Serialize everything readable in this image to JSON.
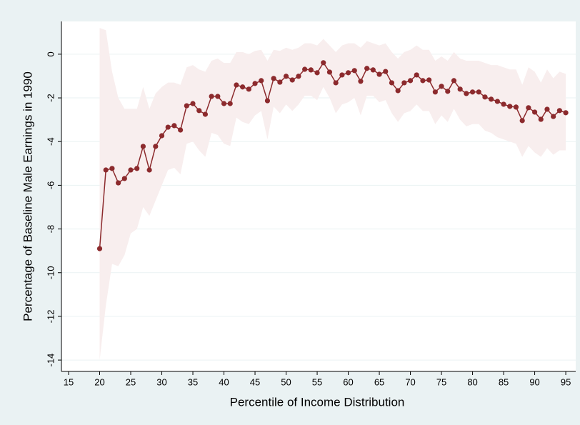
{
  "chart_data": {
    "type": "line",
    "y_label": "Percentage of Baseline Male Earnings in 1990",
    "x_label": "Percentile of Income Distribution",
    "x": [
      20,
      21,
      22,
      23,
      24,
      25,
      26,
      27,
      28,
      29,
      30,
      31,
      32,
      33,
      34,
      35,
      36,
      37,
      38,
      39,
      40,
      41,
      42,
      43,
      44,
      45,
      46,
      47,
      48,
      49,
      50,
      51,
      52,
      53,
      54,
      55,
      56,
      57,
      58,
      59,
      60,
      61,
      62,
      63,
      64,
      65,
      66,
      67,
      68,
      69,
      70,
      71,
      72,
      73,
      74,
      75,
      76,
      77,
      78,
      79,
      80,
      81,
      82,
      83,
      84,
      85,
      86,
      87,
      88,
      89,
      90,
      91,
      92,
      93,
      94,
      95
    ],
    "values": [
      -8.9,
      -5.3,
      -5.23,
      -5.89,
      -5.69,
      -5.3,
      -5.23,
      -4.22,
      -5.3,
      -4.22,
      -3.73,
      -3.34,
      -3.27,
      -3.47,
      -2.36,
      -2.26,
      -2.58,
      -2.75,
      -1.93,
      -1.93,
      -2.26,
      -2.26,
      -1.41,
      -1.5,
      -1.6,
      -1.34,
      -1.21,
      -2.13,
      -1.11,
      -1.28,
      -1.01,
      -1.18,
      -1.01,
      -0.69,
      -0.72,
      -0.85,
      -0.39,
      -0.82,
      -1.31,
      -0.95,
      -0.85,
      -0.75,
      -1.24,
      -0.65,
      -0.72,
      -0.92,
      -0.79,
      -1.31,
      -1.67,
      -1.31,
      -1.21,
      -0.95,
      -1.21,
      -1.18,
      -1.73,
      -1.47,
      -1.7,
      -1.21,
      -1.6,
      -1.8,
      -1.73,
      -1.73,
      -1.96,
      -2.06,
      -2.16,
      -2.29,
      -2.39,
      -2.42,
      -3.04,
      -2.45,
      -2.65,
      -2.98,
      -2.52,
      -2.85,
      -2.58,
      -2.68
    ],
    "ci_upper": [
      1.2,
      1.1,
      -0.8,
      -2.0,
      -2.5,
      -2.5,
      -2.5,
      -1.5,
      -2.5,
      -1.8,
      -1.5,
      -1.3,
      -1.3,
      -1.4,
      -0.6,
      -0.5,
      -0.7,
      -0.8,
      -0.3,
      -0.2,
      -0.4,
      -0.4,
      0.1,
      0.1,
      0,
      0.15,
      0.2,
      -0.3,
      0.2,
      0.15,
      0.3,
      0.2,
      0.3,
      0.5,
      0.5,
      0.4,
      0.7,
      0.4,
      0.1,
      0.4,
      0.5,
      0.5,
      0.3,
      0.6,
      0.5,
      0.4,
      0.5,
      0.1,
      -0.2,
      0.1,
      0.2,
      0.4,
      0.2,
      0.2,
      -0.3,
      -0.1,
      -0.3,
      0.1,
      -0.2,
      -0.3,
      -0.3,
      -0.3,
      -0.4,
      -0.5,
      -0.5,
      -0.6,
      -0.7,
      -0.7,
      -1.4,
      -0.6,
      -0.8,
      -1.3,
      -0.7,
      -1.1,
      -0.8,
      -0.9
    ],
    "ci_lower": [
      -14,
      -11.5,
      -9.6,
      -9.7,
      -9.2,
      -8.2,
      -8.0,
      -7.0,
      -7.4,
      -6.7,
      -6.0,
      -5.3,
      -5.2,
      -5.5,
      -4.1,
      -4.0,
      -4.4,
      -4.7,
      -3.6,
      -3.7,
      -4.1,
      -4.2,
      -2.9,
      -3.1,
      -3.2,
      -2.8,
      -2.6,
      -3.9,
      -2.4,
      -2.7,
      -2.3,
      -2.6,
      -2.3,
      -1.9,
      -1.9,
      -2.1,
      -1.5,
      -2.0,
      -2.7,
      -2.3,
      -2.2,
      -2.0,
      -2.8,
      -1.9,
      -1.9,
      -2.2,
      -2.1,
      -2.7,
      -3.1,
      -2.7,
      -2.6,
      -2.3,
      -2.6,
      -2.6,
      -3.2,
      -2.8,
      -3.1,
      -2.5,
      -3.0,
      -3.3,
      -3.2,
      -3.2,
      -3.5,
      -3.6,
      -3.8,
      -3.9,
      -4.0,
      -4.1,
      -4.7,
      -4.2,
      -4.5,
      -4.7,
      -4.3,
      -4.6,
      -4.4,
      -4.4
    ],
    "color": "#8c2a2d",
    "band_color": "#f8eeee",
    "xlim": [
      13.85,
      96.6
    ],
    "xticks": [
      15,
      20,
      25,
      30,
      35,
      40,
      45,
      50,
      55,
      60,
      65,
      70,
      75,
      80,
      85,
      90,
      95
    ],
    "ylim": [
      -14.52,
      1.5
    ],
    "yticks": [
      0,
      -2,
      -4,
      -6,
      -8,
      -10,
      -12,
      -14
    ],
    "grid": true
  }
}
